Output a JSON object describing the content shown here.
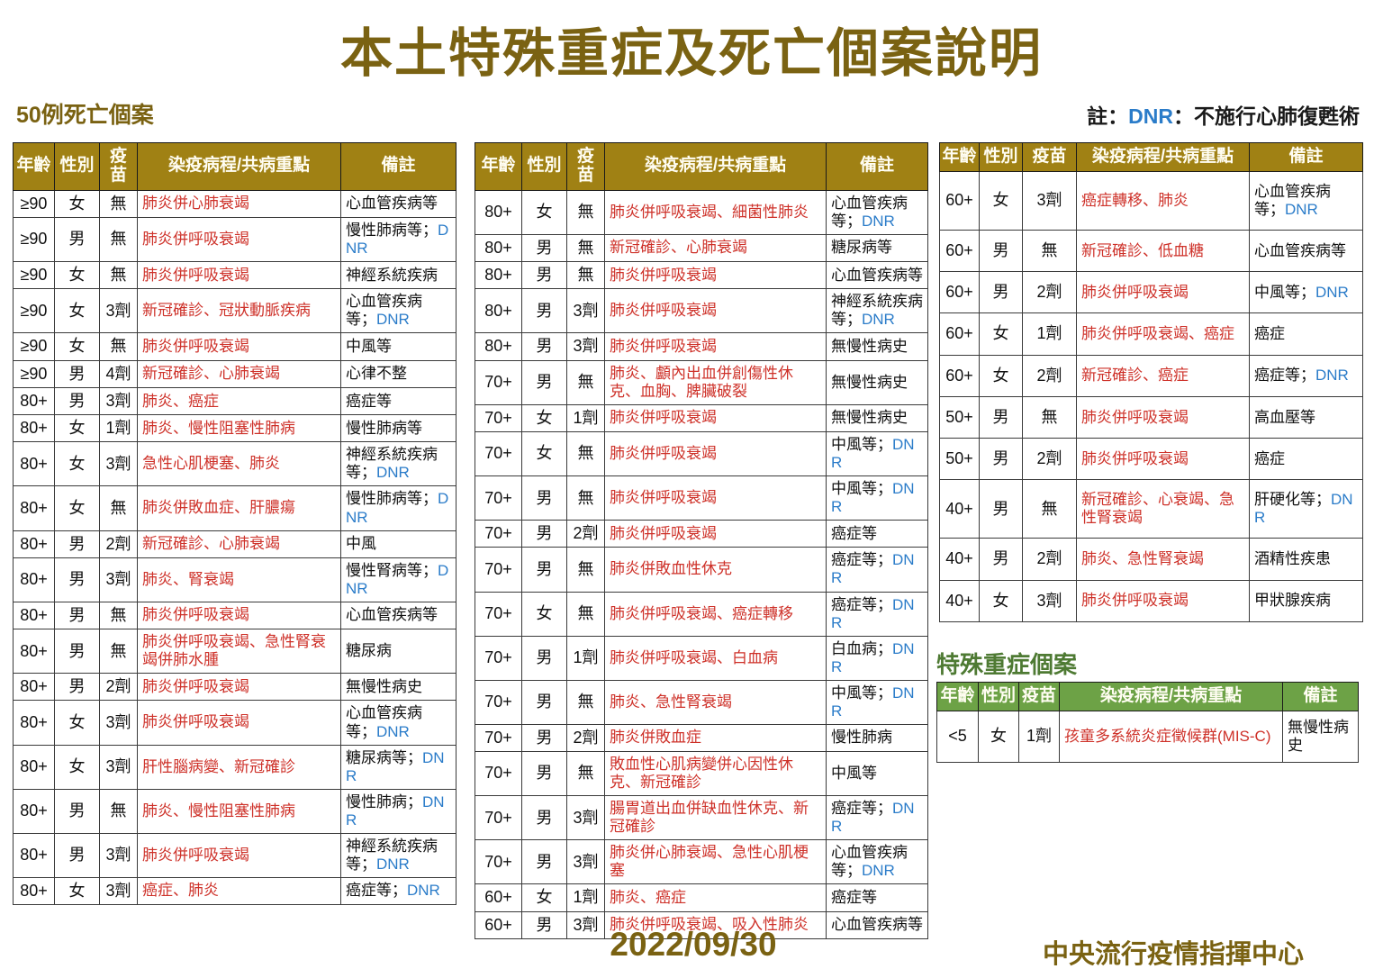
{
  "title": "本土特殊重症及死亡個案說明",
  "death_section_label": "50例死亡個案",
  "note": {
    "prefix": "註：",
    "dnr_label": "DNR",
    "suffix": "：不施行心肺復甦術"
  },
  "columns": [
    "年齡",
    "性別",
    "疫苗",
    "染疫病程/共病重點",
    "備註"
  ],
  "colors": {
    "accent_gold": "#7A6212",
    "table_header_gold": "#A08114",
    "course_red": "#CE3129",
    "dnr_blue": "#2B7CC9",
    "severe_title_green": "#4E7A33",
    "severe_header_green": "#6DA246"
  },
  "death_tables": {
    "left": [
      {
        "age": "≥90",
        "sex": "女",
        "vaccine": "無",
        "course": "肺炎併心肺衰竭",
        "note": "心血管疾病等"
      },
      {
        "age": "≥90",
        "sex": "男",
        "vaccine": "無",
        "course": "肺炎併呼吸衰竭",
        "note": "慢性肺病等；DNR"
      },
      {
        "age": "≥90",
        "sex": "女",
        "vaccine": "無",
        "course": "肺炎併呼吸衰竭",
        "note": "神經系統疾病"
      },
      {
        "age": "≥90",
        "sex": "女",
        "vaccine": "3劑",
        "course": "新冠確診、冠狀動脈疾病",
        "note": "心血管疾病等；DNR"
      },
      {
        "age": "≥90",
        "sex": "女",
        "vaccine": "無",
        "course": "肺炎併呼吸衰竭",
        "note": "中風等"
      },
      {
        "age": "≥90",
        "sex": "男",
        "vaccine": "4劑",
        "course": "新冠確診、心肺衰竭",
        "note": "心律不整"
      },
      {
        "age": "80+",
        "sex": "男",
        "vaccine": "3劑",
        "course": "肺炎、癌症",
        "note": "癌症等"
      },
      {
        "age": "80+",
        "sex": "女",
        "vaccine": "1劑",
        "course": "肺炎、慢性阻塞性肺病",
        "note": "慢性肺病等"
      },
      {
        "age": "80+",
        "sex": "女",
        "vaccine": "3劑",
        "course": "急性心肌梗塞、肺炎",
        "note": "神經系統疾病等；DNR"
      },
      {
        "age": "80+",
        "sex": "女",
        "vaccine": "無",
        "course": "肺炎併敗血症、肝膿瘍",
        "note": "慢性肺病等；DNR"
      },
      {
        "age": "80+",
        "sex": "男",
        "vaccine": "2劑",
        "course": "新冠確診、心肺衰竭",
        "note": "中風"
      },
      {
        "age": "80+",
        "sex": "男",
        "vaccine": "3劑",
        "course": "肺炎、腎衰竭",
        "note": "慢性腎病等；DNR"
      },
      {
        "age": "80+",
        "sex": "男",
        "vaccine": "無",
        "course": "肺炎併呼吸衰竭",
        "note": "心血管疾病等"
      },
      {
        "age": "80+",
        "sex": "男",
        "vaccine": "無",
        "course": "肺炎併呼吸衰竭、急性腎衰竭併肺水腫",
        "note": "糖尿病"
      },
      {
        "age": "80+",
        "sex": "男",
        "vaccine": "2劑",
        "course": "肺炎併呼吸衰竭",
        "note": "無慢性病史"
      },
      {
        "age": "80+",
        "sex": "女",
        "vaccine": "3劑",
        "course": "肺炎併呼吸衰竭",
        "note": "心血管疾病等；DNR"
      },
      {
        "age": "80+",
        "sex": "女",
        "vaccine": "3劑",
        "course": "肝性腦病變、新冠確診",
        "note": "糖尿病等；DNR"
      },
      {
        "age": "80+",
        "sex": "男",
        "vaccine": "無",
        "course": "肺炎、慢性阻塞性肺病",
        "note": "慢性肺病；DNR"
      },
      {
        "age": "80+",
        "sex": "男",
        "vaccine": "3劑",
        "course": "肺炎併呼吸衰竭",
        "note": "神經系統疾病等；DNR"
      },
      {
        "age": "80+",
        "sex": "女",
        "vaccine": "3劑",
        "course": "癌症、肺炎",
        "note": "癌症等；DNR"
      }
    ],
    "middle": [
      {
        "age": "80+",
        "sex": "女",
        "vaccine": "無",
        "course": "肺炎併呼吸衰竭、細菌性肺炎",
        "note": "心血管疾病等；DNR"
      },
      {
        "age": "80+",
        "sex": "男",
        "vaccine": "無",
        "course": "新冠確診、心肺衰竭",
        "note": "糖尿病等"
      },
      {
        "age": "80+",
        "sex": "男",
        "vaccine": "無",
        "course": "肺炎併呼吸衰竭",
        "note": "心血管疾病等"
      },
      {
        "age": "80+",
        "sex": "男",
        "vaccine": "3劑",
        "course": "肺炎併呼吸衰竭",
        "note": "神經系統疾病等；DNR"
      },
      {
        "age": "80+",
        "sex": "男",
        "vaccine": "3劑",
        "course": "肺炎併呼吸衰竭",
        "note": "無慢性病史"
      },
      {
        "age": "70+",
        "sex": "男",
        "vaccine": "無",
        "course": "肺炎、顱內出血併創傷性休克、血胸、脾臟破裂",
        "note": "無慢性病史"
      },
      {
        "age": "70+",
        "sex": "女",
        "vaccine": "1劑",
        "course": "肺炎併呼吸衰竭",
        "note": "無慢性病史"
      },
      {
        "age": "70+",
        "sex": "女",
        "vaccine": "無",
        "course": "肺炎併呼吸衰竭",
        "note": "中風等；DNR"
      },
      {
        "age": "70+",
        "sex": "男",
        "vaccine": "無",
        "course": "肺炎併呼吸衰竭",
        "note": "中風等；DNR"
      },
      {
        "age": "70+",
        "sex": "男",
        "vaccine": "2劑",
        "course": "肺炎併呼吸衰竭",
        "note": "癌症等"
      },
      {
        "age": "70+",
        "sex": "男",
        "vaccine": "無",
        "course": "肺炎併敗血性休克",
        "note": "癌症等；DNR"
      },
      {
        "age": "70+",
        "sex": "女",
        "vaccine": "無",
        "course": "肺炎併呼吸衰竭、癌症轉移",
        "note": "癌症等；DNR"
      },
      {
        "age": "70+",
        "sex": "男",
        "vaccine": "1劑",
        "course": "肺炎併呼吸衰竭、白血病",
        "note": "白血病；DNR"
      },
      {
        "age": "70+",
        "sex": "男",
        "vaccine": "無",
        "course": "肺炎、急性腎衰竭",
        "note": "中風等；DNR"
      },
      {
        "age": "70+",
        "sex": "男",
        "vaccine": "2劑",
        "course": "肺炎併敗血症",
        "note": "慢性肺病"
      },
      {
        "age": "70+",
        "sex": "男",
        "vaccine": "無",
        "course": "敗血性心肌病變併心因性休克、新冠確診",
        "note": "中風等"
      },
      {
        "age": "70+",
        "sex": "男",
        "vaccine": "3劑",
        "course": "腸胃道出血併缺血性休克、新冠確診",
        "note": "癌症等；DNR"
      },
      {
        "age": "70+",
        "sex": "男",
        "vaccine": "3劑",
        "course": "肺炎併心肺衰竭、急性心肌梗塞",
        "note": "心血管疾病等；DNR"
      },
      {
        "age": "60+",
        "sex": "女",
        "vaccine": "1劑",
        "course": "肺炎、癌症",
        "note": "癌症等"
      },
      {
        "age": "60+",
        "sex": "男",
        "vaccine": "3劑",
        "course": "肺炎併呼吸衰竭、吸入性肺炎",
        "note": "心血管疾病等"
      }
    ],
    "right": [
      {
        "age": "60+",
        "sex": "女",
        "vaccine": "3劑",
        "course": "癌症轉移、肺炎",
        "note": "心血管疾病等；DNR"
      },
      {
        "age": "60+",
        "sex": "男",
        "vaccine": "無",
        "course": "新冠確診、低血糖",
        "note": "心血管疾病等"
      },
      {
        "age": "60+",
        "sex": "男",
        "vaccine": "2劑",
        "course": "肺炎併呼吸衰竭",
        "note": "中風等；DNR"
      },
      {
        "age": "60+",
        "sex": "女",
        "vaccine": "1劑",
        "course": "肺炎併呼吸衰竭、癌症",
        "note": "癌症"
      },
      {
        "age": "60+",
        "sex": "女",
        "vaccine": "2劑",
        "course": "新冠確診、癌症",
        "note": "癌症等；DNR"
      },
      {
        "age": "50+",
        "sex": "男",
        "vaccine": "無",
        "course": "肺炎併呼吸衰竭",
        "note": "高血壓等"
      },
      {
        "age": "50+",
        "sex": "男",
        "vaccine": "2劑",
        "course": "肺炎併呼吸衰竭",
        "note": "癌症"
      },
      {
        "age": "40+",
        "sex": "男",
        "vaccine": "無",
        "course": "新冠確診、心衰竭、急性腎衰竭",
        "note": "肝硬化等；DNR"
      },
      {
        "age": "40+",
        "sex": "男",
        "vaccine": "2劑",
        "course": "肺炎、急性腎衰竭",
        "note": "酒精性疾患"
      },
      {
        "age": "40+",
        "sex": "女",
        "vaccine": "3劑",
        "course": "肺炎併呼吸衰竭",
        "note": "甲狀腺疾病"
      }
    ]
  },
  "severe_section": {
    "label": "特殊重症個案",
    "columns": [
      "年齡",
      "性別",
      "疫苗",
      "染疫病程/共病重點",
      "備註"
    ],
    "rows": [
      {
        "age": "<5",
        "sex": "女",
        "vaccine": "1劑",
        "course": "孩童多系統炎症徵候群(MIS-C)",
        "note": "無慢性病史"
      }
    ]
  },
  "footer": {
    "date": "2022/09/30",
    "agency": "中央流行疫情指揮中心"
  }
}
